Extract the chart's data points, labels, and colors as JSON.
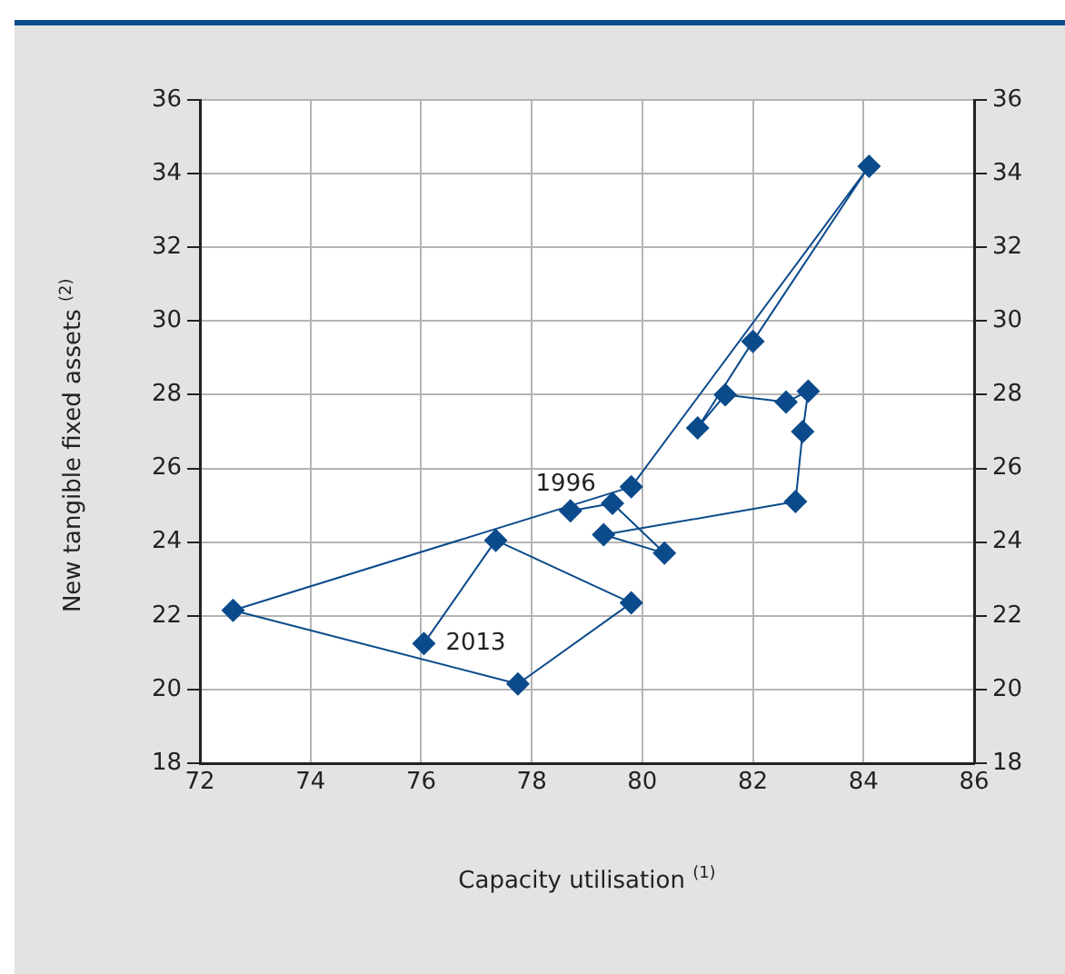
{
  "chart_data": {
    "type": "line",
    "xlabel": "Capacity utilisation $^{(1)}$",
    "ylabel": "New tangible fixed assets $^{(2)}$",
    "series": [
      {
        "color": "#0b4a8b",
        "x": [
          78.7,
          79.46,
          80.4,
          79.3,
          82.77,
          82.9,
          83.0,
          82.6,
          81.5,
          81.0,
          82.0,
          84.1,
          79.8,
          72.6,
          77.75,
          79.8,
          77.35,
          76.05
        ],
        "values": [
          24.85,
          25.05,
          23.7,
          24.2,
          25.1,
          27.0,
          28.1,
          27.8,
          28.0,
          27.1,
          29.45,
          34.2,
          25.5,
          22.15,
          20.15,
          22.35,
          24.05,
          21.25
        ]
      }
    ],
    "xlim": [
      72,
      86
    ],
    "xticks": [
      72,
      74,
      76,
      78,
      80,
      82,
      84,
      86
    ],
    "ylim": [
      18,
      36
    ],
    "yticks": [
      18,
      20,
      22,
      24,
      26,
      28,
      30,
      32,
      34,
      36
    ],
    "y2lim": [
      18,
      36
    ],
    "y2ticks": [
      18,
      20,
      22,
      24,
      26,
      28,
      30,
      32,
      34,
      36
    ],
    "grid": true,
    "legend": false,
    "marker": "diamond",
    "line_style": "solid",
    "annotations": [
      {
        "text": "1996",
        "x": 78.7,
        "y": 24.85
      },
      {
        "text": "2013",
        "x": 76.05,
        "y": 21.25
      }
    ]
  }
}
